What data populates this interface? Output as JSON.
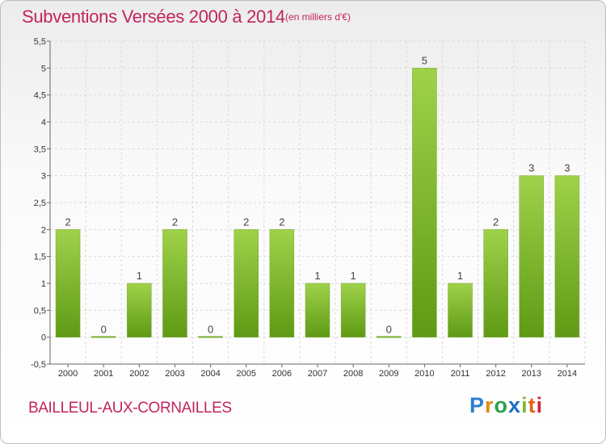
{
  "header": {
    "title": "Subventions Versées 2000 à 2014",
    "subtitle": "(en milliers d'€)"
  },
  "footer": {
    "commune": "BAILLEUL-AUX-CORNAILLES",
    "logo_letters": [
      "P",
      "r",
      "o",
      "x",
      "i",
      "t",
      "i"
    ]
  },
  "colors": {
    "title": "#c2245f",
    "bar_light": "#9fd24a",
    "bar_dark": "#5f9a15",
    "grid": "#d9d9d9"
  },
  "chart_data": {
    "type": "bar",
    "title": "Subventions Versées 2000 à 2014",
    "subtitle": "(en milliers d'€)",
    "categories": [
      "2000",
      "2001",
      "2002",
      "2003",
      "2004",
      "2005",
      "2006",
      "2007",
      "2008",
      "2009",
      "2010",
      "2011",
      "2012",
      "2013",
      "2014"
    ],
    "values": [
      2,
      0,
      1,
      2,
      0,
      2,
      2,
      1,
      1,
      0,
      5,
      1,
      2,
      3,
      3
    ],
    "ylim": [
      -0.5,
      5.5
    ],
    "yticks": [
      "-0,5",
      "0",
      "0,5",
      "1",
      "1,5",
      "2",
      "2,5",
      "3",
      "3,5",
      "4",
      "4,5",
      "5",
      "5,5"
    ],
    "ytick_values": [
      -0.5,
      0,
      0.5,
      1,
      1.5,
      2,
      2.5,
      3,
      3.5,
      4,
      4.5,
      5,
      5.5
    ],
    "grid": true,
    "legend": "none"
  }
}
